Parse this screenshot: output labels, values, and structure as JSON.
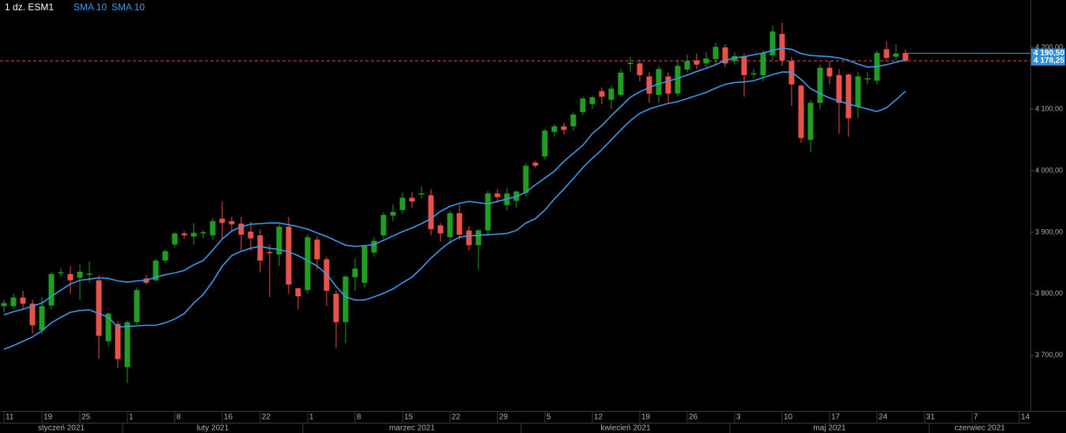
{
  "chart_data": {
    "type": "candlestick",
    "title": "1 dz. ESM1",
    "x": [
      "2021-01-12",
      "2021-01-13",
      "2021-01-14",
      "2021-01-15",
      "2021-01-19",
      "2021-01-20",
      "2021-01-21",
      "2021-01-22",
      "2021-01-25",
      "2021-01-26",
      "2021-01-27",
      "2021-01-28",
      "2021-01-29",
      "2021-02-01",
      "2021-02-02",
      "2021-02-03",
      "2021-02-04",
      "2021-02-05",
      "2021-02-08",
      "2021-02-09",
      "2021-02-10",
      "2021-02-11",
      "2021-02-12",
      "2021-02-16",
      "2021-02-17",
      "2021-02-18",
      "2021-02-19",
      "2021-02-22",
      "2021-02-23",
      "2021-02-24",
      "2021-02-25",
      "2021-02-26",
      "2021-03-01",
      "2021-03-02",
      "2021-03-03",
      "2021-03-04",
      "2021-03-05",
      "2021-03-08",
      "2021-03-09",
      "2021-03-10",
      "2021-03-11",
      "2021-03-12",
      "2021-03-15",
      "2021-03-16",
      "2021-03-17",
      "2021-03-18",
      "2021-03-19",
      "2021-03-22",
      "2021-03-23",
      "2021-03-24",
      "2021-03-25",
      "2021-03-26",
      "2021-03-29",
      "2021-03-30",
      "2021-03-31",
      "2021-04-01",
      "2021-04-02",
      "2021-04-05",
      "2021-04-06",
      "2021-04-07",
      "2021-04-08",
      "2021-04-09",
      "2021-04-12",
      "2021-04-13",
      "2021-04-14",
      "2021-04-15",
      "2021-04-16",
      "2021-04-19",
      "2021-04-20",
      "2021-04-21",
      "2021-04-22",
      "2021-04-23",
      "2021-04-26",
      "2021-04-27",
      "2021-04-28",
      "2021-04-29",
      "2021-04-30",
      "2021-05-03",
      "2021-05-04",
      "2021-05-05",
      "2021-05-06",
      "2021-05-07",
      "2021-05-10",
      "2021-05-11",
      "2021-05-12",
      "2021-05-13",
      "2021-05-14",
      "2021-05-17",
      "2021-05-18",
      "2021-05-19",
      "2021-05-20",
      "2021-05-21",
      "2021-05-24",
      "2021-05-25",
      "2021-05-26",
      "2021-05-27"
    ],
    "open": [
      3780,
      3780,
      3794,
      3784,
      3741,
      3781,
      3834,
      3832,
      3826,
      3832,
      3822,
      3723,
      3751,
      3681,
      3754,
      3825,
      3822,
      3854,
      3880,
      3898,
      3893,
      3899,
      3895,
      3922,
      3918,
      3914,
      3901,
      3895,
      3868,
      3864,
      3909,
      3809,
      3806,
      3888,
      3856,
      3800,
      3754,
      3827,
      3818,
      3867,
      3895,
      3927,
      3936,
      3956,
      3962,
      3960,
      3911,
      3892,
      3931,
      3903,
      3879,
      3903,
      3963,
      3944,
      3951,
      3964,
      4013,
      4023,
      4063,
      4072,
      4072,
      4095,
      4108,
      4129,
      4115,
      4123,
      4173,
      4174,
      4153,
      4123,
      4153,
      4125,
      4164,
      4179,
      4174,
      4181,
      4200,
      4178,
      4185,
      4158,
      4155,
      4187,
      4222,
      4178,
      4138,
      4050,
      4110,
      4167,
      4155,
      4156,
      4104,
      4150,
      4146,
      4197,
      4185,
      4191
    ],
    "high": [
      3790,
      3800,
      3805,
      3790,
      3795,
      3835,
      3842,
      3845,
      3848,
      3852,
      3830,
      3770,
      3755,
      3757,
      3810,
      3830,
      3856,
      3872,
      3900,
      3902,
      3915,
      3903,
      3923,
      3950,
      3925,
      3925,
      3917,
      3905,
      3880,
      3913,
      3925,
      3810,
      3897,
      3893,
      3860,
      3805,
      3830,
      3857,
      3880,
      3892,
      3932,
      3945,
      3965,
      3965,
      3975,
      3970,
      3915,
      3935,
      3945,
      3910,
      3905,
      3967,
      3970,
      3972,
      3968,
      4012,
      4016,
      4068,
      4075,
      4078,
      4095,
      4120,
      4122,
      4135,
      4138,
      4165,
      4185,
      4180,
      4160,
      4170,
      4160,
      4180,
      4188,
      4190,
      4192,
      4208,
      4205,
      4192,
      4190,
      4165,
      4195,
      4235,
      4240,
      4185,
      4140,
      4115,
      4172,
      4178,
      4165,
      4158,
      4160,
      4160,
      4195,
      4210,
      4205,
      4197
    ],
    "low": [
      3770,
      3775,
      3775,
      3735,
      3735,
      3775,
      3828,
      3800,
      3790,
      3818,
      3695,
      3715,
      3680,
      3655,
      3750,
      3815,
      3820,
      3850,
      3875,
      3890,
      3880,
      3890,
      3888,
      3890,
      3903,
      3870,
      3870,
      3835,
      3795,
      3845,
      3800,
      3775,
      3800,
      3840,
      3780,
      3712,
      3720,
      3805,
      3810,
      3860,
      3890,
      3918,
      3930,
      3940,
      3955,
      3895,
      3885,
      3880,
      3888,
      3870,
      3840,
      3895,
      3948,
      3935,
      3940,
      3958,
      4005,
      4018,
      4055,
      4058,
      4065,
      4090,
      4100,
      4108,
      4100,
      4120,
      4160,
      4145,
      4110,
      4110,
      4110,
      4120,
      4160,
      4165,
      4165,
      4170,
      4168,
      4172,
      4120,
      4150,
      4145,
      4180,
      4170,
      4105,
      4045,
      4030,
      4100,
      4140,
      4060,
      4055,
      4085,
      4140,
      4140,
      4180,
      4180,
      4176
    ],
    "close": [
      3785,
      3794,
      3784,
      3749,
      3780,
      3832,
      3835,
      3822,
      3836,
      3833,
      3732,
      3768,
      3694,
      3754,
      3806,
      3818,
      3854,
      3869,
      3898,
      3895,
      3899,
      3900,
      3918,
      3915,
      3913,
      3896,
      3890,
      3854,
      3866,
      3909,
      3815,
      3796,
      3892,
      3856,
      3805,
      3754,
      3828,
      3841,
      3877,
      3886,
      3928,
      3933,
      3956,
      3950,
      3963,
      3905,
      3898,
      3931,
      3896,
      3879,
      3903,
      3963,
      3957,
      3963,
      3966,
      4008,
      4008,
      4065,
      4072,
      4066,
      4091,
      4117,
      4119,
      4120,
      4133,
      4159,
      4175,
      4155,
      4125,
      4165,
      4125,
      4170,
      4178,
      4172,
      4182,
      4201,
      4174,
      4186,
      4155,
      4158,
      4191,
      4226,
      4179,
      4140,
      4053,
      4110,
      4167,
      4153,
      4110,
      4085,
      4153,
      4150,
      4191,
      4183,
      4190,
      4178.25
    ],
    "up_color": "#1f9e23",
    "down_color": "#e8524a",
    "series": [
      {
        "name": "SMA 10",
        "color": "#3a9ae8",
        "values": [
          3766,
          3771,
          3775,
          3780,
          3785,
          3796,
          3806,
          3816,
          3822,
          3824,
          3826,
          3825,
          3821,
          3819,
          3821,
          3822,
          3827,
          3831,
          3834,
          3838,
          3847,
          3854,
          3871,
          3889,
          3902,
          3909,
          3913,
          3914,
          3915,
          3915,
          3912,
          3909,
          3905,
          3899,
          3893,
          3886,
          3879,
          3877,
          3878,
          3880,
          3887,
          3894,
          3901,
          3907,
          3914,
          3922,
          3934,
          3942,
          3947,
          3950,
          3948,
          3946,
          3950,
          3954,
          3958,
          3965,
          3977,
          3988,
          3999,
          4015,
          4028,
          4041,
          4060,
          4073,
          4089,
          4104,
          4119,
          4128,
          4135,
          4141,
          4145,
          4150,
          4155,
          4161,
          4166,
          4172,
          4179,
          4183,
          4185,
          4188,
          4191,
          4195,
          4199,
          4197,
          4190,
          4187,
          4186,
          4185,
          4183,
          4179,
          4173,
          4168,
          4169,
          4172,
          4176,
          4180
        ]
      },
      {
        "name": "SMA 10",
        "color": "#3a9ae8",
        "values": [
          3710,
          3716,
          3723,
          3730,
          3740,
          3753,
          3762,
          3770,
          3773,
          3774,
          3768,
          3762,
          3746,
          3747,
          3748,
          3749,
          3749,
          3753,
          3759,
          3768,
          3785,
          3799,
          3820,
          3845,
          3862,
          3869,
          3874,
          3877,
          3874,
          3872,
          3868,
          3862,
          3854,
          3845,
          3832,
          3812,
          3795,
          3790,
          3790,
          3795,
          3801,
          3808,
          3818,
          3827,
          3842,
          3858,
          3872,
          3884,
          3892,
          3894,
          3895,
          3896,
          3897,
          3898,
          3903,
          3915,
          3922,
          3936,
          3954,
          3970,
          3987,
          4005,
          4020,
          4034,
          4050,
          4066,
          4081,
          4093,
          4100,
          4105,
          4109,
          4112,
          4117,
          4122,
          4127,
          4134,
          4140,
          4143,
          4144,
          4146,
          4151,
          4156,
          4160,
          4160,
          4148,
          4133,
          4125,
          4118,
          4113,
          4108,
          4104,
          4100,
          4096,
          4102,
          4115,
          4129
        ]
      }
    ],
    "price_lines": [
      {
        "value": 4190.5,
        "label": "4 190,50",
        "color": "#3a9ae8",
        "dashed": false
      },
      {
        "value": 4178.25,
        "label": "4 178,25",
        "color": "#e8524a",
        "dashed": true
      }
    ],
    "ylim": [
      3610,
      4277
    ],
    "yticks": [
      {
        "value": 3700,
        "label": "3 700,00"
      },
      {
        "value": 3800,
        "label": "3 800,00"
      },
      {
        "value": 3900,
        "label": "3 900,00"
      },
      {
        "value": 4000,
        "label": "4 000,00"
      },
      {
        "value": 4100,
        "label": "4 100,00"
      },
      {
        "value": 4200,
        "label": "4 200,00"
      }
    ],
    "xticks": [
      {
        "value": "2021-01-11",
        "label": "11"
      },
      {
        "value": "2021-01-19",
        "label": "19"
      },
      {
        "value": "2021-01-25",
        "label": "25"
      },
      {
        "value": "2021-02-01",
        "label": "1"
      },
      {
        "value": "2021-02-08",
        "label": "8"
      },
      {
        "value": "2021-02-16",
        "label": "16"
      },
      {
        "value": "2021-02-22",
        "label": "22"
      },
      {
        "value": "2021-03-01",
        "label": "1"
      },
      {
        "value": "2021-03-08",
        "label": "8"
      },
      {
        "value": "2021-03-15",
        "label": "15"
      },
      {
        "value": "2021-03-22",
        "label": "22"
      },
      {
        "value": "2021-03-29",
        "label": "29"
      },
      {
        "value": "2021-04-05",
        "label": "5"
      },
      {
        "value": "2021-04-12",
        "label": "12"
      },
      {
        "value": "2021-04-19",
        "label": "19"
      },
      {
        "value": "2021-04-26",
        "label": "26"
      },
      {
        "value": "2021-05-03",
        "label": "3"
      },
      {
        "value": "2021-05-10",
        "label": "10"
      },
      {
        "value": "2021-05-17",
        "label": "17"
      },
      {
        "value": "2021-05-24",
        "label": "24"
      },
      {
        "value": "2021-05-31",
        "label": "31"
      },
      {
        "value": "2021-06-07",
        "label": "7"
      },
      {
        "value": "2021-06-14",
        "label": "14"
      }
    ],
    "months": [
      {
        "value": "2021-01-01",
        "label": "styczeń 2021"
      },
      {
        "value": "2021-02-01",
        "label": "luty 2021"
      },
      {
        "value": "2021-03-01",
        "label": "marzec 2021"
      },
      {
        "value": "2021-04-01",
        "label": "kwiecień 2021"
      },
      {
        "value": "2021-05-01",
        "label": "maj 2021"
      },
      {
        "value": "2021-06-01",
        "label": "czerwiec 2021"
      }
    ],
    "grid": false
  }
}
